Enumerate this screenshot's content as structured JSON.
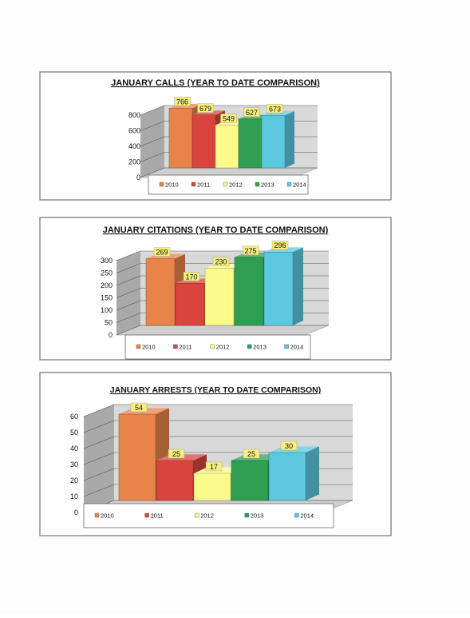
{
  "colors": {
    "2010": "#e8844a",
    "2011": "#d9453d",
    "2012": "#fbfb8c",
    "2013": "#2fa052",
    "2014": "#5cc8e0",
    "label_bg": "#f6f07a",
    "wall": "#d9d9d9",
    "floor": "#cfcfcf"
  },
  "chart_data": [
    {
      "type": "bar",
      "title": "JANUARY CALLS (YEAR TO DATE COMPARISON)",
      "series": [
        {
          "name": "2010",
          "values": [
            766
          ]
        },
        {
          "name": "2011",
          "values": [
            679
          ]
        },
        {
          "name": "2012",
          "values": [
            549
          ]
        },
        {
          "name": "2013",
          "values": [
            627
          ]
        },
        {
          "name": "2014",
          "values": [
            673
          ]
        }
      ],
      "y_ticks": [
        "0",
        "200",
        "400",
        "600",
        "800"
      ],
      "ylim": [
        0,
        800
      ],
      "grid": true,
      "legend_position": "bottom"
    },
    {
      "type": "bar",
      "title": "JANUARY CITATIONS (YEAR TO DATE COMPARISON)",
      "series": [
        {
          "name": "2010",
          "values": [
            269
          ]
        },
        {
          "name": "2011",
          "values": [
            170
          ]
        },
        {
          "name": "2012",
          "values": [
            230
          ]
        },
        {
          "name": "2013",
          "values": [
            275
          ]
        },
        {
          "name": "2014",
          "values": [
            296
          ]
        }
      ],
      "y_ticks": [
        "0",
        "50",
        "100",
        "150",
        "200",
        "250",
        "300"
      ],
      "ylim": [
        0,
        300
      ],
      "grid": true,
      "legend_position": "bottom"
    },
    {
      "type": "bar",
      "title": "JANUARY ARRESTS (YEAR TO DATE COMPARISON)",
      "series": [
        {
          "name": "2010",
          "values": [
            54
          ]
        },
        {
          "name": "2011",
          "values": [
            25
          ]
        },
        {
          "name": "2012",
          "values": [
            17
          ]
        },
        {
          "name": "2013",
          "values": [
            25
          ]
        },
        {
          "name": "2014",
          "values": [
            30
          ]
        }
      ],
      "y_ticks": [
        "0",
        "10",
        "20",
        "30",
        "40",
        "50",
        "60"
      ],
      "ylim": [
        0,
        60
      ],
      "grid": true,
      "legend_position": "bottom"
    }
  ]
}
